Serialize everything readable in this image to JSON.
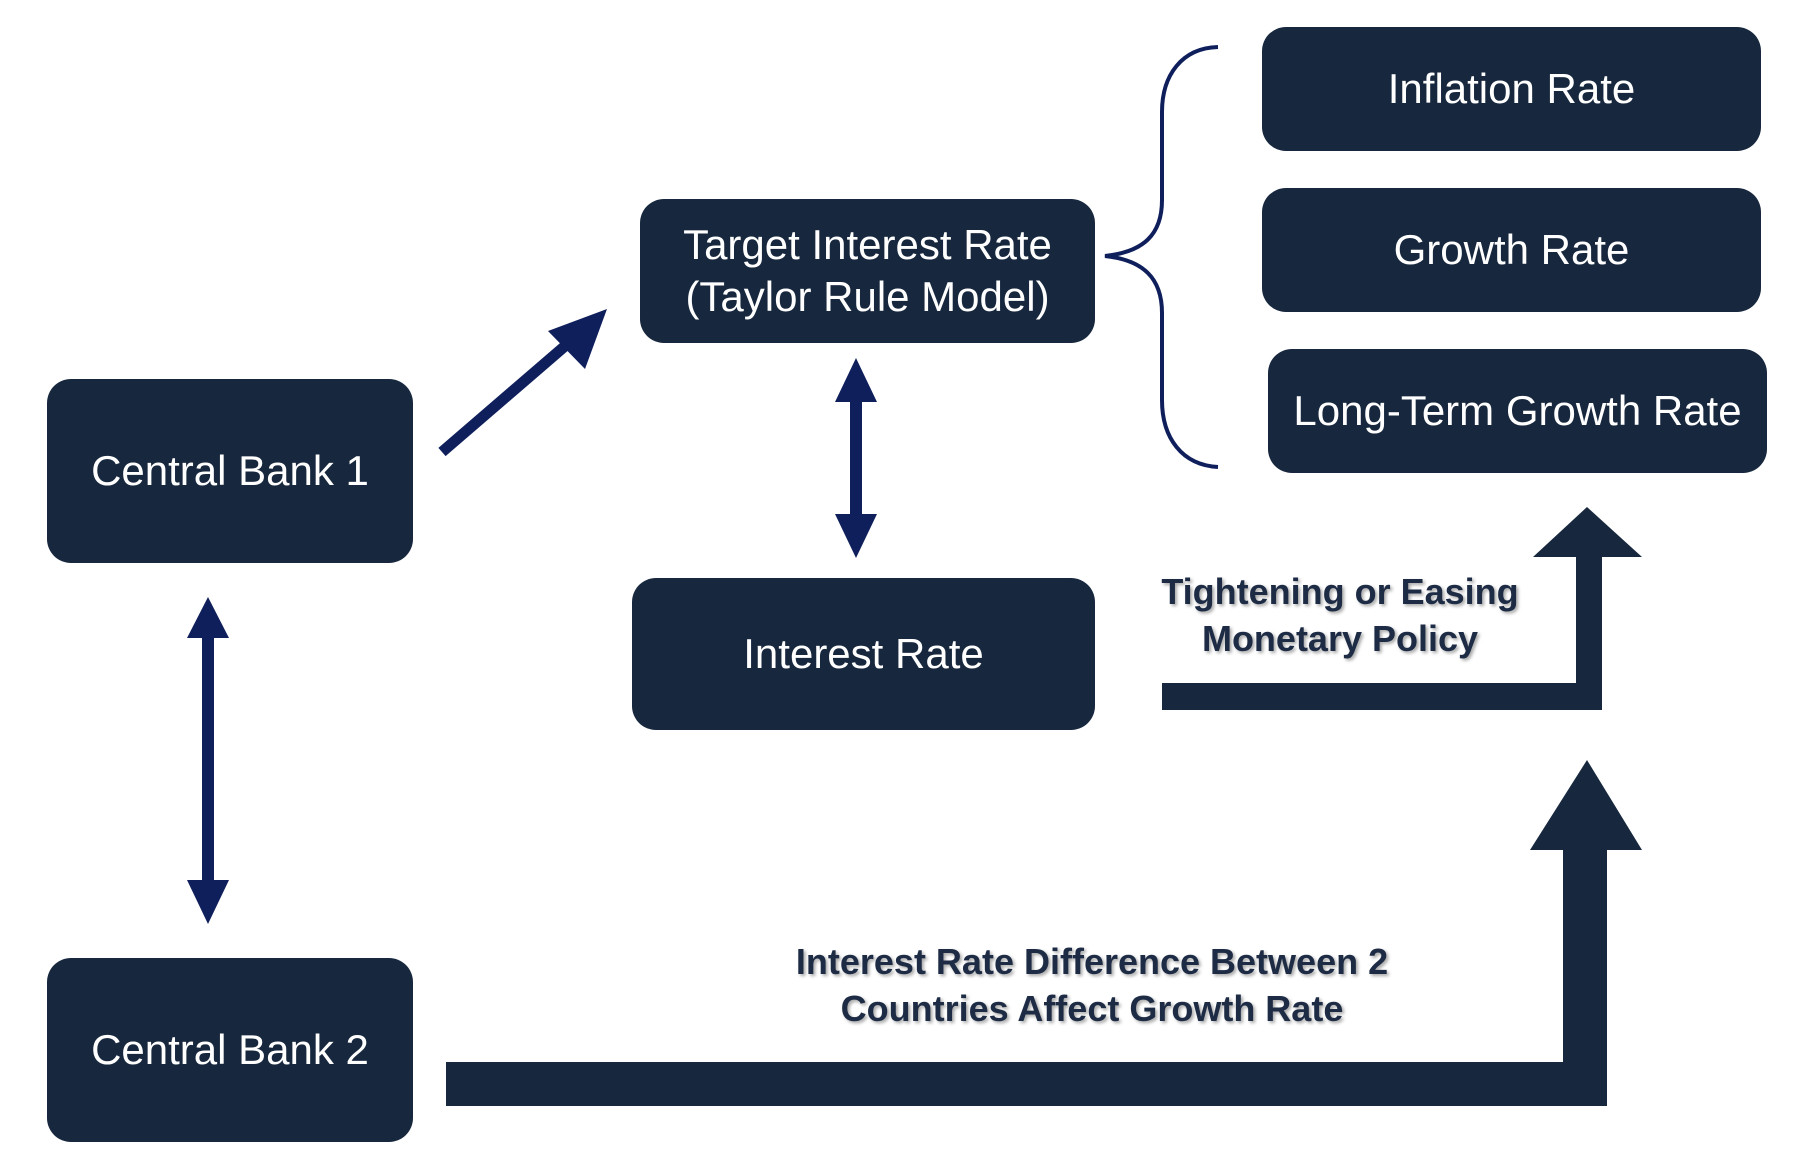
{
  "boxes": {
    "central_bank_1": "Central Bank 1",
    "central_bank_2": "Central Bank 2",
    "target_rate_line1": "Target Interest Rate",
    "target_rate_line2": "(Taylor Rule Model)",
    "interest_rate": "Interest Rate",
    "inflation_rate": "Inflation Rate",
    "growth_rate": "Growth Rate",
    "long_term_growth_rate": "Long-Term Growth Rate"
  },
  "labels": {
    "policy_line1": "Tightening or Easing",
    "policy_line2": "Monetary Policy",
    "difference_line1": "Interest Rate Difference Between 2",
    "difference_line2": "Countries Affect Growth Rate"
  },
  "colors": {
    "box_fill": "#17273d",
    "arrow": "#0f1f5c",
    "thick_arrow": "#17273d",
    "label_text": "#1d2b45"
  }
}
